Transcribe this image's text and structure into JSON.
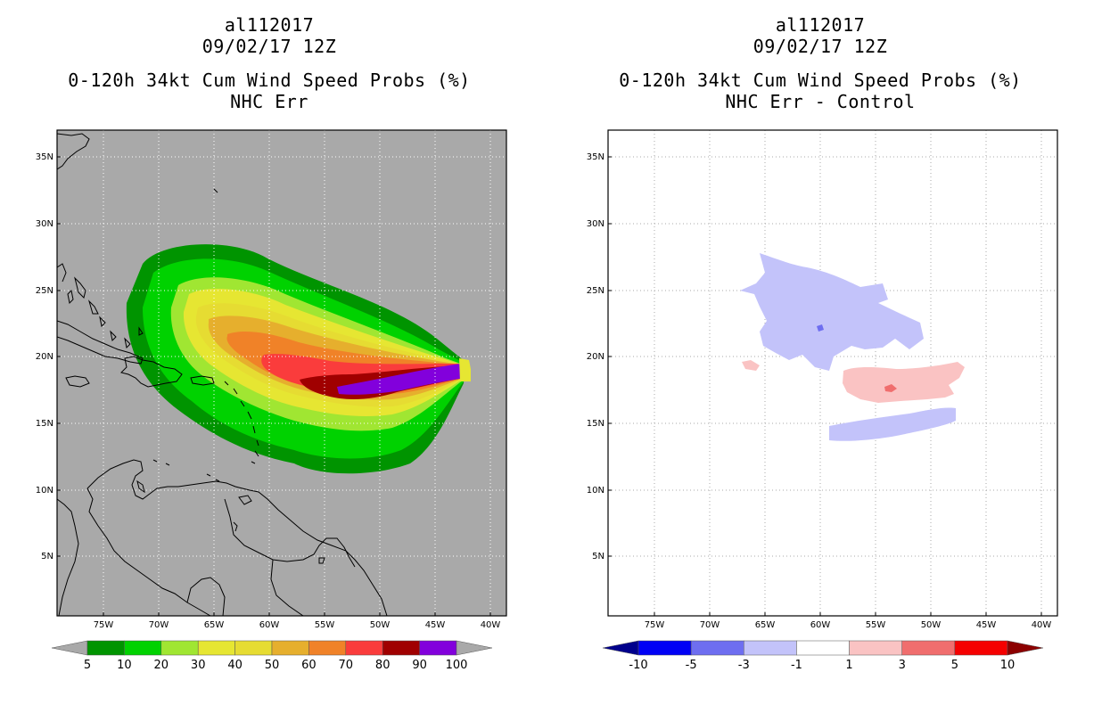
{
  "left": {
    "storm_id": "al112017",
    "datetime": "09/02/17 12Z",
    "product": "0-120h 34kt Cum Wind Speed Probs (%)",
    "subtitle": "NHC Err",
    "colorbar": {
      "labels": [
        "5",
        "10",
        "20",
        "30",
        "40",
        "50",
        "60",
        "70",
        "80",
        "90",
        "100"
      ],
      "colors": [
        "#a9a9a9",
        "#009400",
        "#00d200",
        "#a0e632",
        "#e6e632",
        "#e6dc32",
        "#e6af2d",
        "#f08228",
        "#fa3c3c",
        "#a00000",
        "#8200dc",
        "#a9a9a9"
      ]
    }
  },
  "right": {
    "storm_id": "al112017",
    "datetime": "09/02/17 12Z",
    "product": "0-120h 34kt Cum Wind Speed Probs (%)",
    "subtitle": "NHC Err - Control",
    "colorbar": {
      "labels": [
        "-10",
        "-5",
        "-3",
        "-1",
        "1",
        "3",
        "5",
        "10"
      ],
      "colors": [
        "#00008c",
        "#0000f5",
        "#6e6ef0",
        "#c3c3fa",
        "#ffffff",
        "#fac3c3",
        "#f06e6e",
        "#f50000",
        "#8c0000"
      ]
    }
  },
  "axes": {
    "lon_labels": [
      "75W",
      "70W",
      "65W",
      "60W",
      "55W",
      "50W",
      "45W",
      "40W"
    ],
    "lat_labels": [
      "35N",
      "30N",
      "25N",
      "20N",
      "15N",
      "10N",
      "5N"
    ]
  },
  "colors": {
    "map_background": "#a9a9a9",
    "coastline": "#000000",
    "grid": "#bbbbbb"
  }
}
